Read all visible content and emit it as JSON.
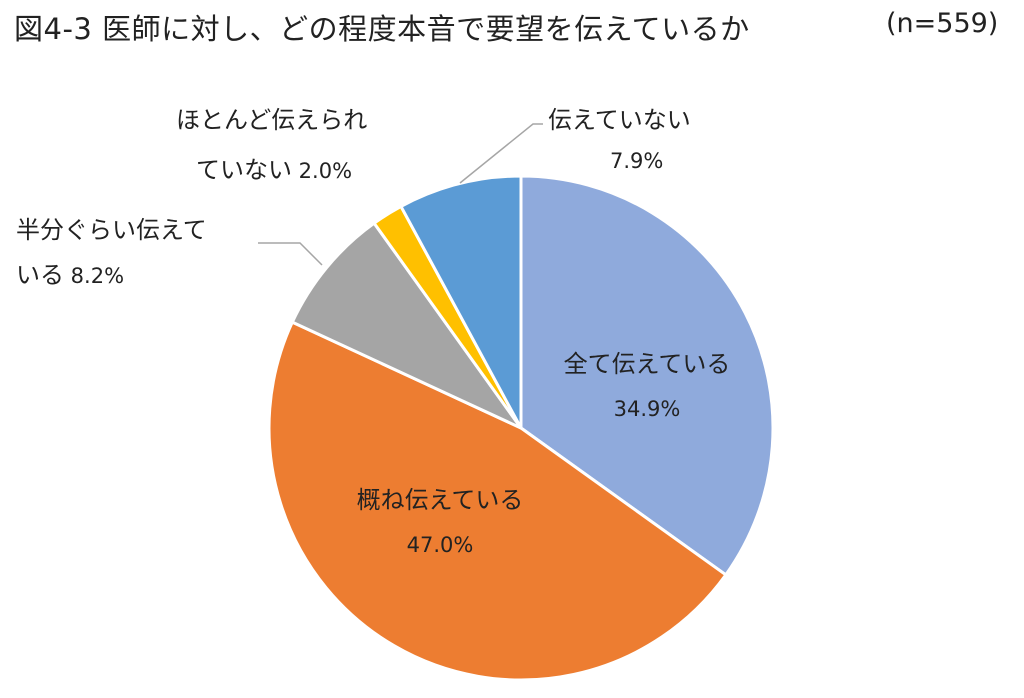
{
  "title": "図4-3 医師に対し、どの程度本音で要望を伝えているか",
  "sample": "(n=559)",
  "chart_data": {
    "type": "pie",
    "title": "図4-3 医師に対し、どの程度本音で要望を伝えているか",
    "subtitle": "(n=559)",
    "start": "12 o'clock, clockwise",
    "slices": [
      {
        "label": "全て伝えている",
        "label_lines": [
          "全て伝えている"
        ],
        "value": 34.9,
        "display": "34.9%",
        "color": "#8FAADC"
      },
      {
        "label": "概ね伝えている",
        "label_lines": [
          "概ね伝えている"
        ],
        "value": 47.0,
        "display": "47.0%",
        "color": "#ED7D31"
      },
      {
        "label": "半分ぐらい伝えている",
        "label_lines": [
          "半分ぐらい伝えて",
          "いる"
        ],
        "value": 8.2,
        "display": "8.2%",
        "color": "#A5A5A5"
      },
      {
        "label": "ほとんど伝えられていない",
        "label_lines": [
          "ほとんど伝えられ",
          "ていない"
        ],
        "value": 2.0,
        "display": "2.0%",
        "color": "#FFC000"
      },
      {
        "label": "伝えていない",
        "label_lines": [
          "伝えていない"
        ],
        "value": 7.9,
        "display": "7.9%",
        "color": "#5B9BD5"
      }
    ]
  }
}
